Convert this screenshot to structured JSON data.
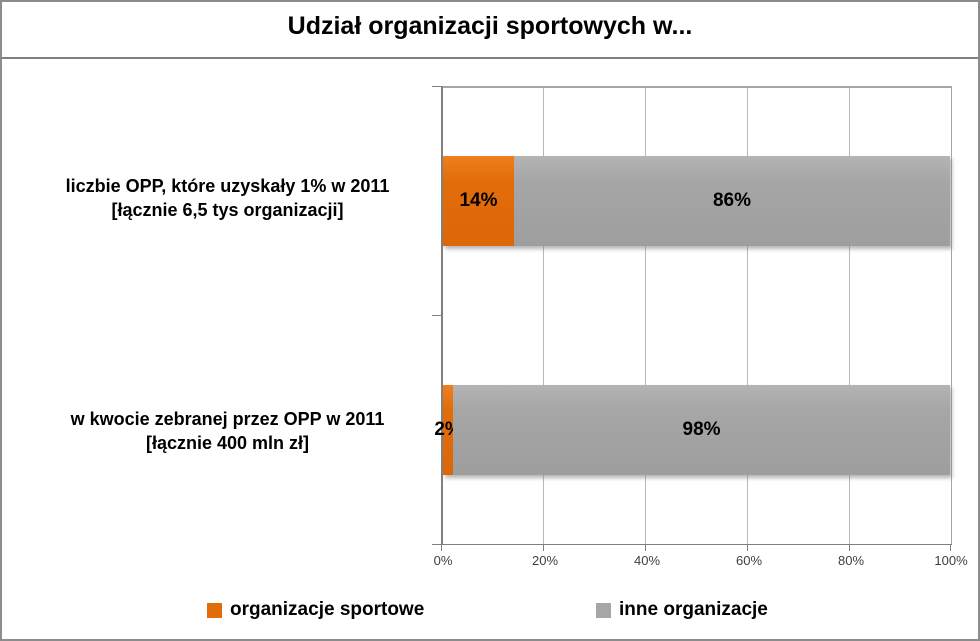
{
  "chart_data": {
    "type": "bar",
    "orientation": "horizontal",
    "stacked": true,
    "title": "Udział organizacji sportowych w...",
    "categories": [
      "liczbie OPP, które uzyskały 1% w 2011 [łącznie 6,5 tys organizacji]",
      "w kwocie zebranej przez OPP w 2011 [łącznie 400 mln zł]"
    ],
    "category_lines": [
      {
        "line1": "liczbie OPP, które uzyskały 1% w 2011",
        "line2": "[łącznie 6,5 tys organizacji]"
      },
      {
        "line1": "w kwocie zebranej przez OPP w 2011",
        "line2": "[łącznie 400 mln zł]"
      }
    ],
    "series": [
      {
        "name": "organizacje sportowe",
        "color": "#E36C0A",
        "values": [
          14,
          2
        ]
      },
      {
        "name": "inne organizacje",
        "color": "#A6A6A6",
        "values": [
          86,
          98
        ]
      }
    ],
    "data_labels": [
      [
        "14%",
        "86%"
      ],
      [
        "2%",
        "98%"
      ]
    ],
    "x_ticks": [
      "0%",
      "20%",
      "40%",
      "60%",
      "80%",
      "100%"
    ],
    "xlim": [
      0,
      100
    ],
    "grid": "vertical-gridlines-on",
    "legend_position": "bottom"
  },
  "colors": {
    "sport_orange": "#E36C0A",
    "other_gray": "#A6A6A6",
    "gridline": "#B8B8B8",
    "axis": "#808080",
    "title_rule": "#7F7F7F",
    "outer_border": "#8C8C8C"
  }
}
